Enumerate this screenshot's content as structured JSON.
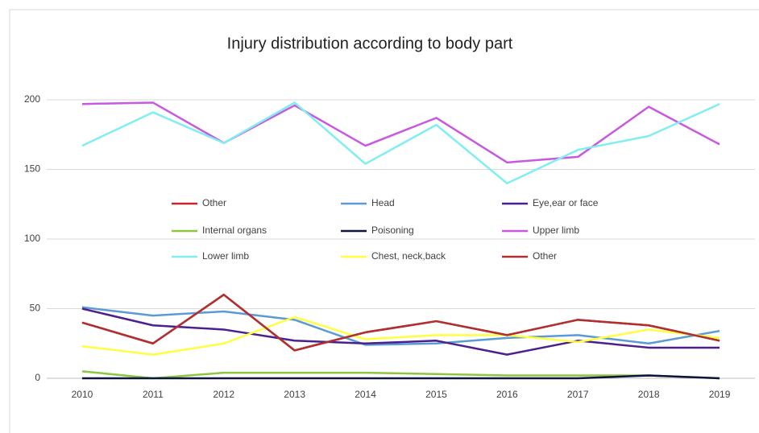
{
  "chart_data": {
    "type": "line",
    "title": "Injury distribution according to body part",
    "categories": [
      "2010",
      "2011",
      "2012",
      "2013",
      "2014",
      "2015",
      "2016",
      "2017",
      "2018",
      "2019"
    ],
    "series": [
      {
        "name": "Other",
        "color": "#c0282d",
        "values": [
          40,
          25,
          60,
          20,
          33,
          41,
          31,
          42,
          38,
          27
        ]
      },
      {
        "name": "Head",
        "color": "#5b9bd5",
        "values": [
          51,
          45,
          48,
          42,
          24,
          25,
          29,
          31,
          25,
          34
        ]
      },
      {
        "name": "Eye,ear or face",
        "color": "#4b1f8c",
        "values": [
          50,
          38,
          35,
          27,
          25,
          27,
          17,
          27,
          22,
          22
        ]
      },
      {
        "name": "Internal organs",
        "color": "#8dc63f",
        "values": [
          5,
          0,
          4,
          4,
          4,
          3,
          2,
          2,
          2,
          0
        ]
      },
      {
        "name": "Poisoning",
        "color": "#0d1440",
        "values": [
          0,
          0,
          0,
          0,
          0,
          0,
          0,
          0,
          2,
          0
        ]
      },
      {
        "name": "Upper limb",
        "color": "#c858e0",
        "values": [
          197,
          198,
          169,
          196,
          167,
          187,
          155,
          159,
          195,
          168
        ]
      },
      {
        "name": "Lower limb",
        "color": "#80eef0",
        "values": [
          167,
          191,
          169,
          198,
          154,
          182,
          140,
          164,
          174,
          197
        ]
      },
      {
        "name": "Chest, neck,back",
        "color": "#ffff40",
        "values": [
          23,
          17,
          25,
          44,
          28,
          31,
          31,
          26,
          35,
          29
        ]
      },
      {
        "name": "Other",
        "color": "#b03030",
        "values": [
          40,
          25,
          60,
          20,
          33,
          41,
          31,
          42,
          38,
          27
        ]
      }
    ],
    "ylim": [
      0,
      200
    ],
    "yticks": [
      0,
      50,
      100,
      150,
      200
    ],
    "grid": true
  }
}
